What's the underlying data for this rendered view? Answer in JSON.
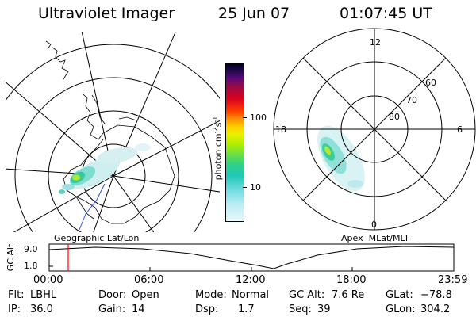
{
  "header": {
    "instrument": "Ultraviolet Imager",
    "date": "25 Jun 07",
    "time": "01:07:45 UT"
  },
  "colorbar": {
    "unit_label": "photon cm",
    "unit_exp1": "-2",
    "unit_s": "s",
    "unit_exp2": "-1",
    "ticks": [
      {
        "label": "100",
        "value": 100
      },
      {
        "label": "10",
        "value": 10
      }
    ]
  },
  "geo_map": {
    "label": "Geographic Lat/Lon"
  },
  "apex_map": {
    "label": "Apex  MLat/MLT",
    "mlt_labels": {
      "top": "12",
      "left": "18",
      "right": "6",
      "bottom": "0"
    },
    "mlat_labels": [
      "60",
      "70",
      "80"
    ]
  },
  "altitude_plot": {
    "ylabel": "GC Alt",
    "yticks": [
      "9.0",
      "1.8"
    ],
    "xticks": [
      "00:00",
      "06:00",
      "12:00",
      "18:00",
      "23:59"
    ],
    "cursor_time_hours": 1.13
  },
  "info": {
    "filter_label": "Flt:",
    "filter_value": "LBHL",
    "ip_label": "IP:",
    "ip_value": "36.0",
    "door_label": "Door:",
    "door_value": "Open",
    "gain_label": "Gain:",
    "gain_value": "14",
    "mode_label": "Mode:",
    "mode_value": "Normal",
    "dsp_label": "Dsp:",
    "dsp_value": "1.7",
    "gcalt_label": "GC Alt:",
    "gcalt_value": "7.6 Re",
    "seq_label": "Seq:",
    "seq_value": "39",
    "glat_label": "GLat:",
    "glat_value": "−78.8",
    "glon_label": "GLon:",
    "glon_value": "304.2"
  },
  "colors": {
    "cursor": "#ff0000",
    "track": "#3050e0"
  }
}
